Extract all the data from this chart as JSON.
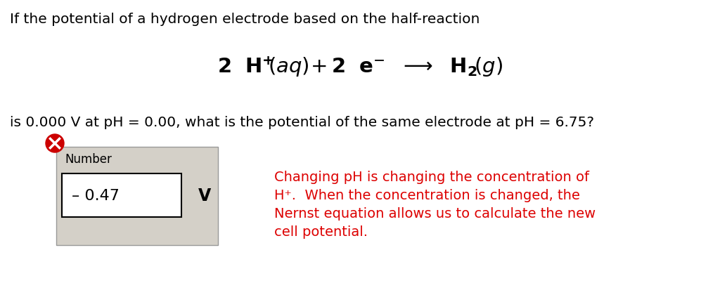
{
  "bg_color": "#ffffff",
  "line1_text": "If the potential of a hydrogen electrode based on the half-reaction",
  "line1_fontsize": 14.5,
  "line1_color": "#000000",
  "line3_text": "is 0.000 V at pH = 0.00, what is the potential of the same electrode at pH = 6.75?",
  "line3_fontsize": 14.5,
  "line3_color": "#000000",
  "box_bg": "#d4d0c8",
  "number_label_text": "Number",
  "number_label_fontsize": 12,
  "value_text": "– 0.47",
  "value_fontsize": 16,
  "unit_text": "V",
  "unit_fontsize": 17,
  "red_text_line1": "Changing pH is changing the concentration of",
  "red_text_line2": "H⁺.  When the concentration is changed, the",
  "red_text_line3": "Nernst equation allows us to calculate the new",
  "red_text_line4": "cell potential.",
  "red_text_fontsize": 14,
  "red_text_color": "#dd0000"
}
